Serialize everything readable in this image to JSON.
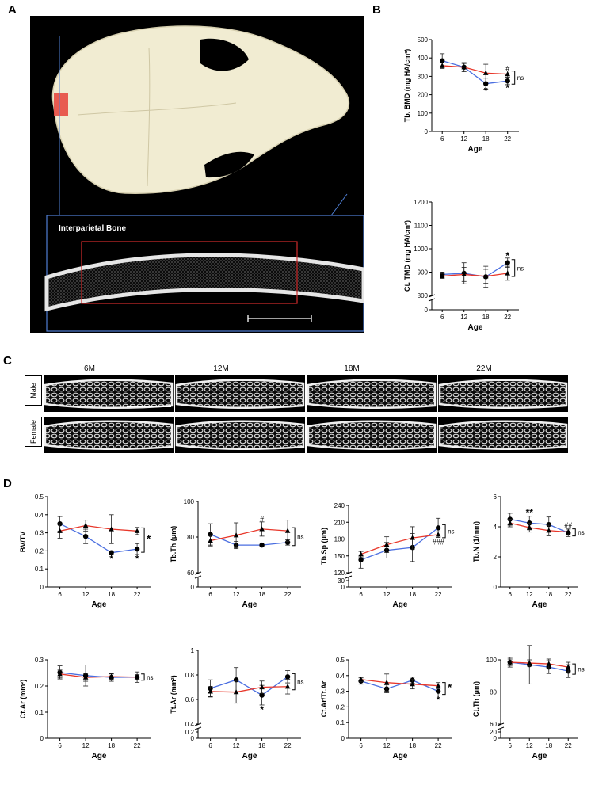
{
  "panels": {
    "a": "A",
    "b": "B",
    "c": "C",
    "d": "D"
  },
  "panel_a": {
    "inset_label": "Interparietal Bone"
  },
  "panel_c": {
    "columns": [
      "6M",
      "12M",
      "18M",
      "22M"
    ],
    "rows": [
      "Male",
      "Female"
    ]
  },
  "colors": {
    "male": "#4a6ee0",
    "female": "#e8372a"
  },
  "chart_data": [
    {
      "type": "line",
      "id": "tbbmd",
      "ylabel": "Tb. BMD (mg HA/cm³)",
      "xlabel": "Age",
      "x": [
        6,
        12,
        18,
        22
      ],
      "ylim": [
        0,
        500
      ],
      "yticks": [
        0,
        100,
        200,
        300,
        400,
        500
      ],
      "series": [
        {
          "marker": "circle",
          "color": "#4a6ee0",
          "values": [
            385,
            350,
            260,
            275
          ],
          "err": [
            38,
            25,
            30,
            20
          ]
        },
        {
          "marker": "triangle",
          "color": "#e8372a",
          "values": [
            358,
            350,
            318,
            312
          ],
          "err": [
            15,
            20,
            48,
            18
          ]
        }
      ],
      "annotations": [
        {
          "x": 18,
          "y": 222,
          "text": "*"
        },
        {
          "x": 22,
          "y": 238,
          "text": "*"
        },
        {
          "x": 22,
          "y": 348,
          "text": "#"
        }
      ],
      "bracket": {
        "from": 275,
        "to": 312,
        "text": "ns"
      }
    },
    {
      "type": "line",
      "id": "cttmd",
      "ylabel": "Ct. TMD (mg HA/cm³)",
      "xlabel": "Age",
      "x": [
        6,
        12,
        18,
        22
      ],
      "ylim": [
        800,
        1200
      ],
      "break": true,
      "yticks": [
        0,
        800,
        900,
        1000,
        1100,
        1200
      ],
      "series": [
        {
          "marker": "circle",
          "color": "#4a6ee0",
          "values": [
            890,
            895,
            880,
            940
          ],
          "err": [
            10,
            45,
            45,
            20
          ]
        },
        {
          "marker": "triangle",
          "color": "#e8372a",
          "values": [
            883,
            890,
            882,
            895
          ],
          "err": [
            10,
            30,
            30,
            30
          ]
        }
      ],
      "annotations": [
        {
          "x": 22,
          "y": 970,
          "text": "*"
        }
      ],
      "bracket": {
        "from": 895,
        "to": 940,
        "text": "ns"
      }
    },
    {
      "type": "line",
      "id": "bvtv",
      "ylabel": "BV/TV",
      "xlabel": "Age",
      "x": [
        6,
        12,
        18,
        22
      ],
      "ylim": [
        0,
        0.5
      ],
      "yticks": [
        0.0,
        0.1,
        0.2,
        0.3,
        0.4,
        0.5
      ],
      "series": [
        {
          "marker": "circle",
          "color": "#4a6ee0",
          "values": [
            0.35,
            0.28,
            0.19,
            0.21
          ],
          "err": [
            0.04,
            0.04,
            0.01,
            0.03
          ]
        },
        {
          "marker": "triangle",
          "color": "#e8372a",
          "values": [
            0.31,
            0.34,
            0.32,
            0.31
          ],
          "err": [
            0.04,
            0.03,
            0.08,
            0.02
          ]
        }
      ],
      "annotations": [
        {
          "x": 18,
          "y": 0.155,
          "text": "*"
        },
        {
          "x": 22,
          "y": 0.155,
          "text": "*"
        }
      ],
      "bracket": {
        "from": 0.21,
        "to": 0.31,
        "text": "*"
      }
    },
    {
      "type": "line",
      "id": "tbth",
      "ylabel": "Tb.Th (μm)",
      "xlabel": "Age",
      "x": [
        6,
        12,
        18,
        22
      ],
      "ylim": [
        60,
        100
      ],
      "break": true,
      "yticks": [
        0,
        60,
        80,
        100
      ],
      "series": [
        {
          "marker": "circle",
          "color": "#4a6ee0",
          "values": [
            81.5,
            75.5,
            75.5,
            77
          ],
          "err": [
            6,
            2,
            0.5,
            1.5
          ]
        },
        {
          "marker": "triangle",
          "color": "#e8372a",
          "values": [
            78,
            81,
            84.5,
            83.5
          ],
          "err": [
            3,
            7,
            4,
            6
          ]
        }
      ],
      "annotations": [
        {
          "x": 18,
          "y": 90.5,
          "text": "#"
        }
      ],
      "bracket": {
        "from": 77,
        "to": 83.5,
        "text": "ns"
      }
    },
    {
      "type": "line",
      "id": "tbsp",
      "ylabel": "Tb.Sp (μm)",
      "xlabel": "Age",
      "x": [
        6,
        12,
        18,
        22
      ],
      "ylim": [
        120,
        240
      ],
      "break": true,
      "yticks": [
        0,
        30,
        120,
        150,
        180,
        210,
        240
      ],
      "series": [
        {
          "marker": "circle",
          "color": "#4a6ee0",
          "values": [
            143,
            160,
            165,
            200
          ],
          "err": [
            15,
            14,
            25,
            17
          ]
        },
        {
          "marker": "triangle",
          "color": "#e8372a",
          "values": [
            153,
            170,
            182,
            188
          ],
          "err": [
            5,
            14,
            20,
            5
          ]
        }
      ],
      "annotations": [
        {
          "x": 22,
          "y": 176,
          "text": "###"
        }
      ],
      "bracket": {
        "from": 188,
        "to": 200,
        "text": "ns"
      }
    },
    {
      "type": "line",
      "id": "tbn",
      "ylabel": "Tb.N (1/mm)",
      "xlabel": "Age",
      "x": [
        6,
        12,
        18,
        22
      ],
      "ylim": [
        0,
        6
      ],
      "yticks": [
        0,
        2,
        4,
        6
      ],
      "series": [
        {
          "marker": "circle",
          "color": "#4a6ee0",
          "values": [
            4.5,
            4.25,
            4.15,
            3.6
          ],
          "err": [
            0.4,
            0.45,
            0.5,
            0.25
          ]
        },
        {
          "marker": "triangle",
          "color": "#e8372a",
          "values": [
            4.25,
            3.95,
            3.75,
            3.65
          ],
          "err": [
            0.25,
            0.3,
            0.35,
            0.2
          ]
        }
      ],
      "annotations": [
        {
          "x": 12,
          "y": 4.95,
          "text": "**"
        },
        {
          "x": 22,
          "y": 4.15,
          "text": "##"
        }
      ],
      "bracket": {
        "from": 3.6,
        "to": 3.65,
        "text": "ns"
      }
    },
    {
      "type": "line",
      "id": "ctar",
      "ylabel": "Ct.Ar (mm²)",
      "xlabel": "Age",
      "x": [
        6,
        12,
        18,
        22
      ],
      "ylim": [
        0,
        0.3
      ],
      "yticks": [
        0.0,
        0.1,
        0.2,
        0.3
      ],
      "series": [
        {
          "marker": "circle",
          "color": "#4a6ee0",
          "values": [
            0.252,
            0.24,
            0.233,
            0.234
          ],
          "err": [
            0.025,
            0.04,
            0.015,
            0.02
          ]
        },
        {
          "marker": "triangle",
          "color": "#e8372a",
          "values": [
            0.246,
            0.233,
            0.236,
            0.234
          ],
          "err": [
            0.015,
            0.015,
            0.01,
            0.01
          ]
        }
      ],
      "annotations": [],
      "bracket": {
        "from": 0.234,
        "to": 0.234,
        "text": "ns"
      }
    },
    {
      "type": "line",
      "id": "ttar",
      "ylabel": "Tt.Ar (mm²)",
      "xlabel": "Age",
      "x": [
        6,
        12,
        18,
        22
      ],
      "ylim": [
        0.4,
        1.0
      ],
      "break": true,
      "yticks": [
        0.0,
        0.2,
        0.4,
        0.6,
        0.8,
        1.0
      ],
      "series": [
        {
          "marker": "circle",
          "color": "#4a6ee0",
          "values": [
            0.69,
            0.76,
            0.635,
            0.785
          ],
          "err": [
            0.07,
            0.1,
            0.08,
            0.05
          ]
        },
        {
          "marker": "triangle",
          "color": "#e8372a",
          "values": [
            0.665,
            0.66,
            0.7,
            0.705
          ],
          "err": [
            0.04,
            0.09,
            0.05,
            0.06
          ]
        }
      ],
      "annotations": [
        {
          "x": 18,
          "y": 0.515,
          "text": "*"
        }
      ],
      "bracket": {
        "from": 0.705,
        "to": 0.785,
        "text": "ns"
      }
    },
    {
      "type": "line",
      "id": "ctartt",
      "ylabel": "Ct.Ar/Tt.Ar",
      "xlabel": "Age",
      "x": [
        6,
        12,
        18,
        22
      ],
      "ylim": [
        0,
        0.5
      ],
      "yticks": [
        0.0,
        0.1,
        0.2,
        0.3,
        0.4,
        0.5
      ],
      "series": [
        {
          "marker": "circle",
          "color": "#4a6ee0",
          "values": [
            0.365,
            0.315,
            0.37,
            0.3
          ],
          "err": [
            0.02,
            0.025,
            0.02,
            0.03
          ]
        },
        {
          "marker": "triangle",
          "color": "#e8372a",
          "values": [
            0.375,
            0.355,
            0.345,
            0.335
          ],
          "err": [
            0.015,
            0.055,
            0.03,
            0.02
          ]
        }
      ],
      "annotations": [
        {
          "x": 22,
          "y": 0.245,
          "text": "*"
        }
      ],
      "bracket": {
        "from": 0.3,
        "to": 0.335,
        "text": "*"
      }
    },
    {
      "type": "line",
      "id": "ctth",
      "ylabel": "Ct.Th (μm)",
      "xlabel": "Age",
      "x": [
        6,
        12,
        18,
        22
      ],
      "ylim": [
        60,
        100
      ],
      "break": true,
      "yticks": [
        0,
        20,
        60,
        80,
        100
      ],
      "series": [
        {
          "marker": "circle",
          "color": "#4a6ee0",
          "values": [
            98.5,
            97,
            95.5,
            93
          ],
          "err": [
            3,
            12,
            4,
            4
          ]
        },
        {
          "marker": "triangle",
          "color": "#e8372a",
          "values": [
            98.5,
            98,
            97.5,
            95.5
          ],
          "err": [
            2,
            2,
            3,
            3
          ]
        }
      ],
      "annotations": [],
      "bracket": {
        "from": 93,
        "to": 95.5,
        "text": "ns"
      }
    }
  ]
}
